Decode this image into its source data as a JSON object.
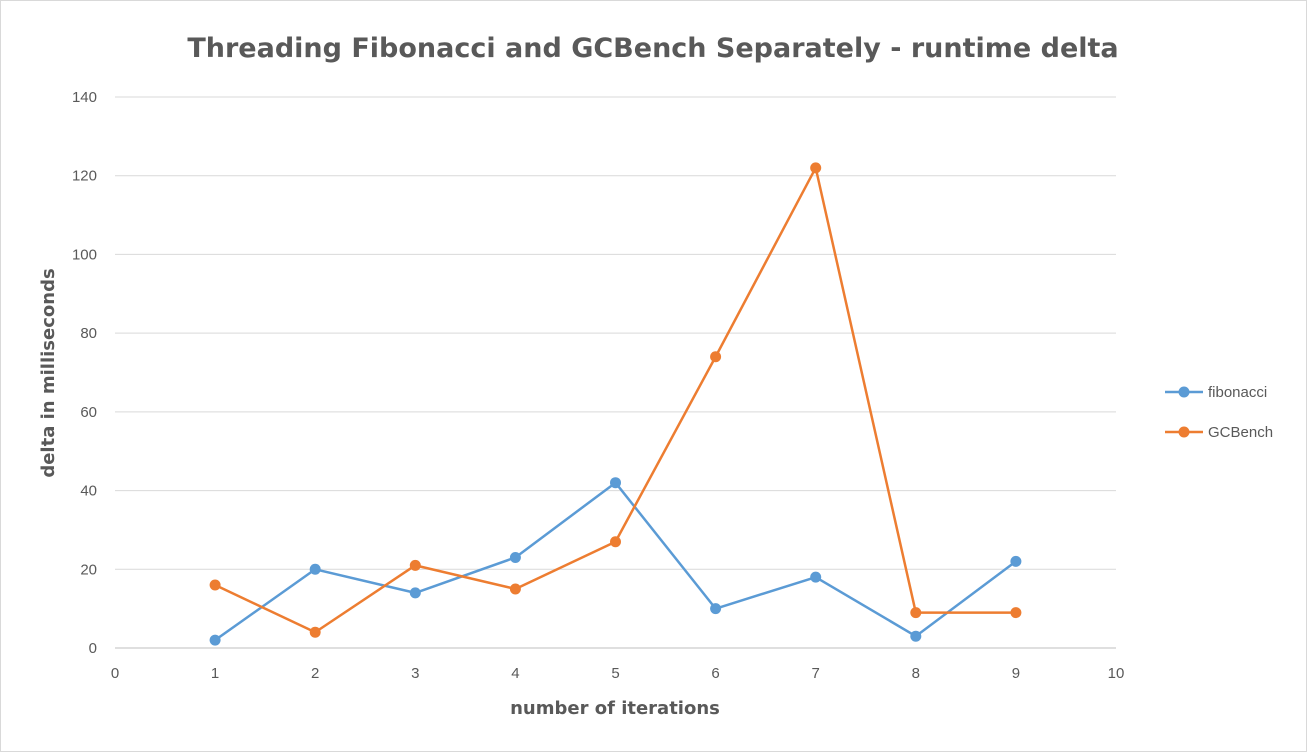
{
  "chart_data": {
    "type": "scatter",
    "title": "Threading Fibonacci and GCBench Separately - runtime delta",
    "xlabel": "number of iterations",
    "ylabel": "delta in milliseconds",
    "xlim": [
      0,
      10
    ],
    "ylim": [
      0,
      140
    ],
    "xticks": [
      0,
      1,
      2,
      3,
      4,
      5,
      6,
      7,
      8,
      9,
      10
    ],
    "yticks": [
      0,
      20,
      40,
      60,
      80,
      100,
      120,
      140
    ],
    "grid": "horizontal",
    "legend_position": "right",
    "lines_connected": true,
    "series": [
      {
        "name": "fibonacci",
        "color": "#5b9bd5",
        "x": [
          1,
          2,
          3,
          4,
          5,
          6,
          7,
          8,
          9
        ],
        "y": [
          2,
          20,
          14,
          23,
          42,
          10,
          18,
          3,
          22
        ]
      },
      {
        "name": "GCBench",
        "color": "#ed7d31",
        "x": [
          1,
          2,
          3,
          4,
          5,
          6,
          7,
          8,
          9
        ],
        "y": [
          16,
          4,
          21,
          15,
          27,
          74,
          122,
          9,
          9
        ]
      }
    ]
  }
}
